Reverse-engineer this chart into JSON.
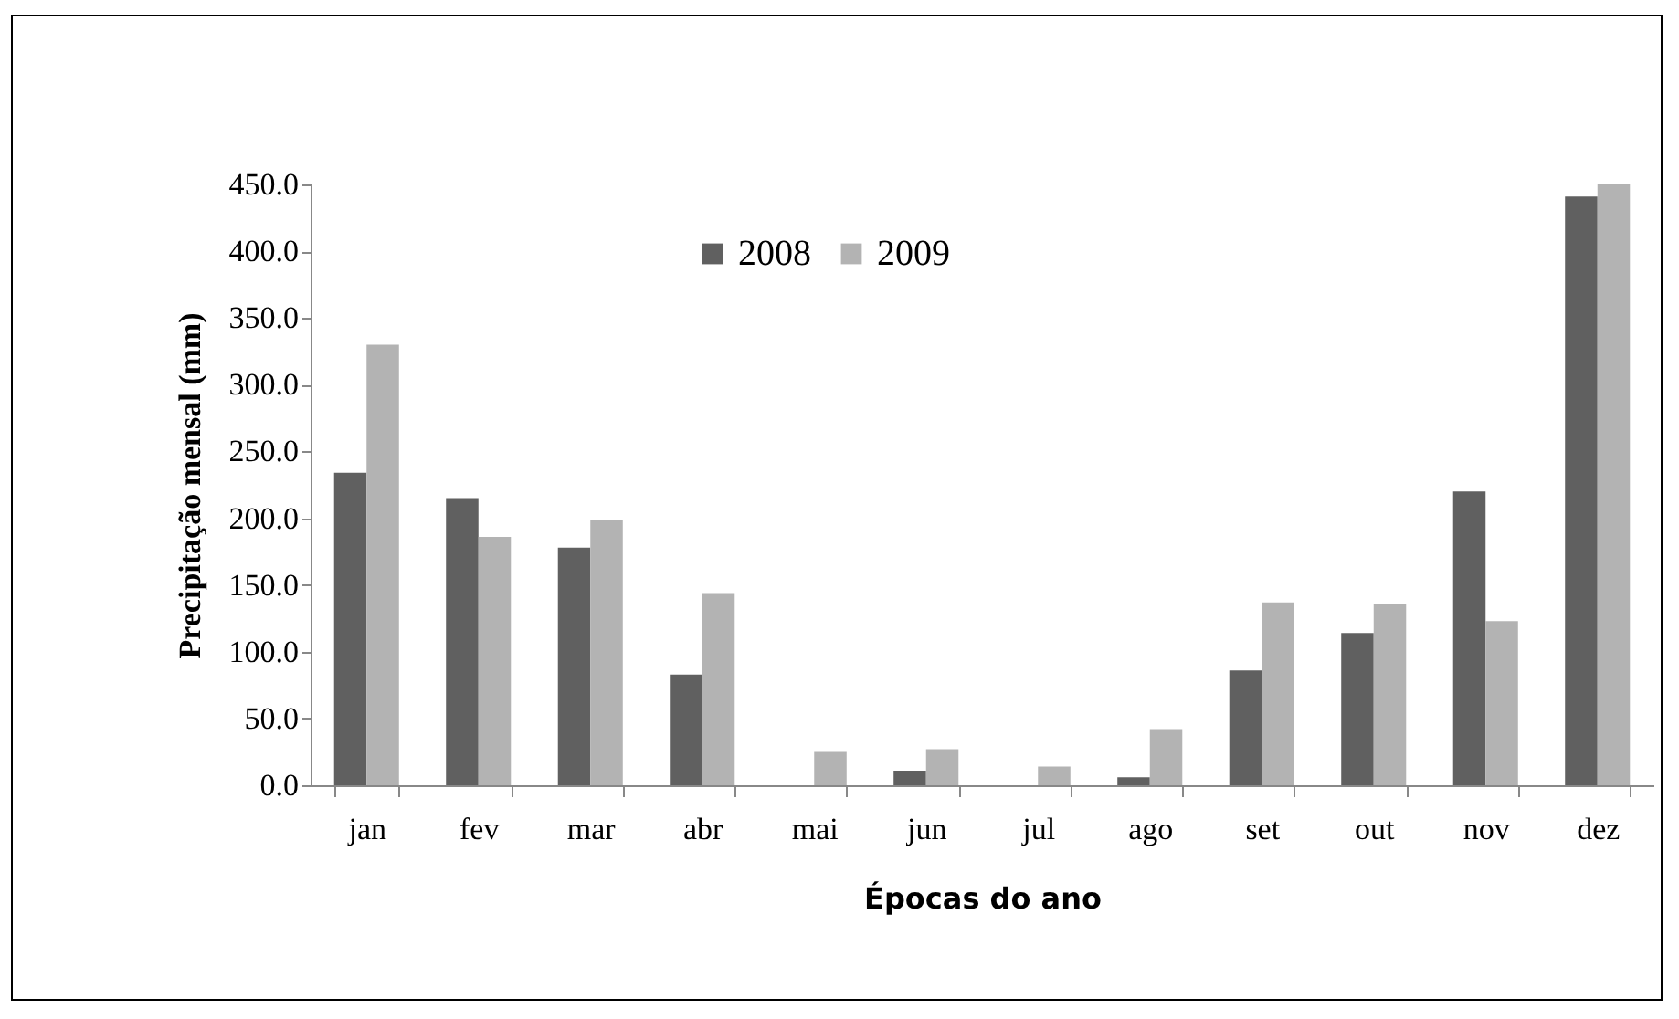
{
  "chart_data": {
    "type": "bar",
    "xlabel": "Épocas do ano",
    "ylabel": "Precipitação mensal  (mm)",
    "categories": [
      "jan",
      "fev",
      "mar",
      "abr",
      "mai",
      "jun",
      "jul",
      "ago",
      "set",
      "out",
      "nov",
      "dez"
    ],
    "series": [
      {
        "name": "2008",
        "color": "#606060",
        "values": [
          234,
          215,
          178,
          83,
          0,
          11,
          0,
          6,
          86,
          114,
          220,
          441
        ]
      },
      {
        "name": "2009",
        "color": "#b3b3b3",
        "values": [
          330,
          186,
          199,
          144,
          25,
          27,
          14,
          42,
          137,
          136,
          123,
          450
        ]
      }
    ],
    "ylim": [
      0,
      450
    ],
    "yticks": [
      {
        "value": 0,
        "label": "0.0"
      },
      {
        "value": 50,
        "label": "50.0"
      },
      {
        "value": 100,
        "label": "100.0"
      },
      {
        "value": 150,
        "label": "150.0"
      },
      {
        "value": 200,
        "label": "200.0"
      },
      {
        "value": 250,
        "label": "250.0"
      },
      {
        "value": 300,
        "label": "300.0"
      },
      {
        "value": 350,
        "label": "350.0"
      },
      {
        "value": 400,
        "label": "400.0"
      },
      {
        "value": 450,
        "label": "450.0"
      }
    ],
    "grid": false,
    "legend": "top"
  }
}
